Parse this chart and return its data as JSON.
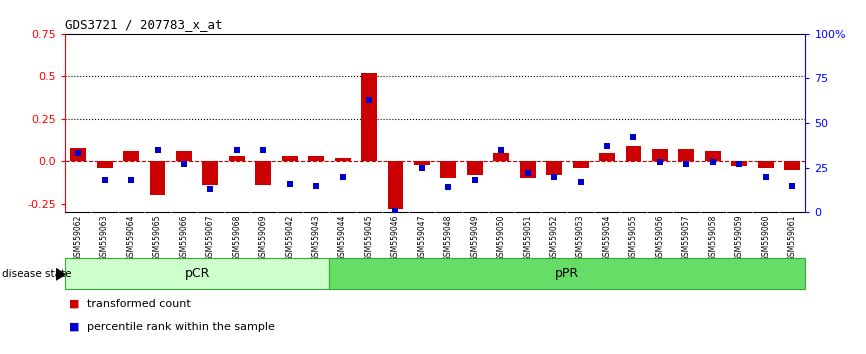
{
  "title": "GDS3721 / 207783_x_at",
  "samples": [
    "GSM559062",
    "GSM559063",
    "GSM559064",
    "GSM559065",
    "GSM559066",
    "GSM559067",
    "GSM559068",
    "GSM559069",
    "GSM559042",
    "GSM559043",
    "GSM559044",
    "GSM559045",
    "GSM559046",
    "GSM559047",
    "GSM559048",
    "GSM559049",
    "GSM559050",
    "GSM559051",
    "GSM559052",
    "GSM559053",
    "GSM559054",
    "GSM559055",
    "GSM559056",
    "GSM559057",
    "GSM559058",
    "GSM559059",
    "GSM559060",
    "GSM559061"
  ],
  "bar_values": [
    0.08,
    -0.04,
    0.06,
    -0.2,
    0.06,
    -0.14,
    0.03,
    -0.14,
    0.03,
    0.03,
    0.02,
    0.52,
    -0.28,
    -0.02,
    -0.1,
    -0.08,
    0.05,
    -0.1,
    -0.08,
    -0.04,
    0.05,
    0.09,
    0.07,
    0.07,
    0.06,
    -0.03,
    -0.04,
    -0.05
  ],
  "dot_values_pct": [
    33,
    18,
    18,
    35,
    27,
    13,
    35,
    35,
    16,
    15,
    20,
    63,
    1,
    25,
    14,
    18,
    35,
    22,
    20,
    17,
    37,
    42,
    28,
    27,
    28,
    27,
    20,
    15
  ],
  "pCR_count": 10,
  "pPR_count": 18,
  "bar_color": "#cc0000",
  "dot_color": "#0000cc",
  "ylim_left": [
    -0.3,
    0.75
  ],
  "ylim_right": [
    0,
    100
  ],
  "yticks_left": [
    -0.25,
    0.0,
    0.25,
    0.5,
    0.75
  ],
  "yticks_right": [
    0,
    25,
    50,
    75,
    100
  ],
  "hlines": [
    0.25,
    0.5
  ],
  "pCR_color": "#ccffcc",
  "pPR_color": "#66dd66",
  "pCR_label": "pCR",
  "pPR_label": "pPR",
  "disease_state_label": "disease state",
  "legend_bar_label": "transformed count",
  "legend_dot_label": "percentile rank within the sample",
  "bg_color": "#ffffff",
  "gray_ticklabel_bg": "#d0d0d0",
  "left_axis_color": "red",
  "right_axis_color": "blue",
  "top_spine_color": "black"
}
